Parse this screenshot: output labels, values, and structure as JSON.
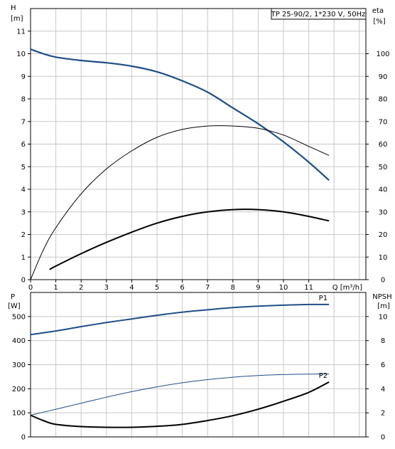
{
  "chart_data": [
    {
      "type": "line",
      "title": "TP 25-90/2, 1*230 V, 50Hz",
      "y_label": "H",
      "y_unit": "[m]",
      "y2_label": "eta",
      "y2_unit": "[%]",
      "x_label": "Q [m³/h]",
      "xlim": [
        0,
        13
      ],
      "ylim": [
        0,
        12
      ],
      "y2lim": [
        0,
        120
      ],
      "x_ticks": [
        0,
        1,
        2,
        3,
        4,
        5,
        6,
        7,
        8,
        9,
        10,
        11
      ],
      "y_ticks": [
        0,
        1,
        2,
        3,
        4,
        5,
        6,
        7,
        8,
        9,
        10,
        11
      ],
      "y2_ticks": [
        0,
        10,
        20,
        30,
        40,
        50,
        60,
        70,
        80,
        90,
        100
      ],
      "grid": true,
      "series": [
        {
          "axis": "left",
          "color": "#1f4e88",
          "width": 2.2,
          "x": [
            0,
            0.5,
            1,
            2,
            3,
            4,
            5,
            6,
            7,
            8,
            9,
            10,
            11,
            11.8
          ],
          "y": [
            10.2,
            10.0,
            9.85,
            9.7,
            9.6,
            9.45,
            9.2,
            8.8,
            8.3,
            7.6,
            6.9,
            6.1,
            5.2,
            4.4
          ]
        },
        {
          "axis": "left",
          "color": "#000000",
          "width": 1,
          "x": [
            0,
            0.5,
            1,
            2,
            3,
            4,
            5,
            6,
            7,
            8,
            9,
            10,
            11,
            11.8
          ],
          "y": [
            0,
            1.3,
            2.3,
            3.8,
            4.9,
            5.7,
            6.3,
            6.65,
            6.8,
            6.8,
            6.7,
            6.4,
            5.9,
            5.5
          ]
        },
        {
          "axis": "left",
          "color": "#000000",
          "width": 2,
          "x": [
            0.75,
            1,
            2,
            3,
            4,
            5,
            6,
            7,
            8,
            9,
            10,
            11,
            11.8
          ],
          "y": [
            0.45,
            0.6,
            1.15,
            1.65,
            2.1,
            2.5,
            2.8,
            3.0,
            3.1,
            3.1,
            3.0,
            2.8,
            2.6
          ]
        }
      ]
    },
    {
      "type": "line",
      "y_label": "P",
      "y_unit": "[W]",
      "y2_label": "NPSH",
      "y2_unit": "[m]",
      "xlim": [
        0,
        13
      ],
      "ylim": [
        0,
        600
      ],
      "y2lim": [
        0,
        12
      ],
      "y_ticks": [
        0,
        100,
        200,
        300,
        400,
        500
      ],
      "y2_ticks": [
        0,
        2,
        4,
        6,
        8,
        10
      ],
      "grid": true,
      "series": [
        {
          "name": "P1",
          "axis": "left",
          "color": "#1f4e88",
          "width": 2,
          "x": [
            0,
            1,
            2,
            3,
            4,
            5,
            6,
            7,
            8,
            9,
            10,
            11,
            11.8
          ],
          "y": [
            425,
            440,
            458,
            475,
            490,
            505,
            518,
            528,
            537,
            543,
            547,
            550,
            550
          ]
        },
        {
          "axis": "left",
          "color": "#1f4e88",
          "width": 1,
          "x": [
            0,
            1,
            2,
            3,
            4,
            5,
            6,
            7,
            8,
            9,
            10,
            11,
            11.8
          ],
          "y": [
            90,
            115,
            140,
            165,
            188,
            208,
            225,
            238,
            248,
            255,
            259,
            261,
            261
          ]
        },
        {
          "name": "P2",
          "axis": "left",
          "color": "#000000",
          "width": 2,
          "x": [
            0,
            0.5,
            1,
            2,
            3,
            4,
            5,
            6,
            7,
            8,
            9,
            10,
            11,
            11.8
          ],
          "y": [
            90,
            68,
            52,
            43,
            40,
            40,
            44,
            52,
            68,
            88,
            115,
            148,
            185,
            228
          ]
        }
      ]
    }
  ]
}
